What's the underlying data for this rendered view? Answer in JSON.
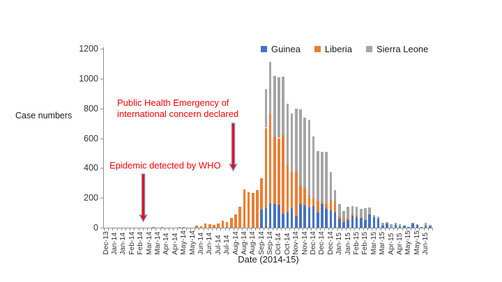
{
  "y_axis": {
    "label": "Case numbers",
    "ticks": [
      0,
      200,
      400,
      600,
      800,
      1000,
      1200
    ]
  },
  "x_axis": {
    "label": "Date (2014-15)"
  },
  "legend": [
    {
      "name": "Guinea",
      "color": "#4472C4"
    },
    {
      "name": "Liberia",
      "color": "#ED7D31"
    },
    {
      "name": "Sierra Leone",
      "color": "#A5A5A5"
    }
  ],
  "annotations": {
    "pheic_line1": "Public Health Emergency of",
    "pheic_line2": "international concern declared",
    "epidemic": "Epidemic detected by WHO",
    "text_color": "#FF0000",
    "arrow_fill": "#FF0000",
    "arrow_outline": "#7B8EC8"
  },
  "chart_data": {
    "type": "bar",
    "stacked": true,
    "title": "",
    "xlabel": "Date (2014-15)",
    "ylabel": "Case numbers",
    "ylim": [
      0,
      1200
    ],
    "y_tick_step": 200,
    "grid": false,
    "legend_position": "top",
    "bars_per_label": 2,
    "categories": [
      "Dec-13",
      "Jan-14",
      "Jan-14",
      "Feb-14",
      "Feb-14",
      "Mar-14",
      "Mar-14",
      "Apr-14",
      "Apr-14",
      "May-14",
      "May-14",
      "Jun-14",
      "Jun-14",
      "Jul-14",
      "Jul-14",
      "Aug-14",
      "Aug-14",
      "Aug-14",
      "Sep-14",
      "Sep-14",
      "Oct-14",
      "Oct-14",
      "Nov-14",
      "Nov-14",
      "Dec-14",
      "Dec-14",
      "Dec-14",
      "Jan-15",
      "Jan-15",
      "Feb-15",
      "Feb-15",
      "Mar-15",
      "Mar-15",
      "Apr-15",
      "Apr-15",
      "May-15",
      "May-15",
      "Jun-15"
    ],
    "series": [
      {
        "name": "Guinea",
        "color": "#4472C4",
        "values": [
          0,
          0,
          0,
          0,
          0,
          0,
          0,
          0,
          0,
          0,
          0,
          0,
          0,
          0,
          0,
          0,
          0,
          0,
          0,
          0,
          0,
          0,
          0,
          0,
          0,
          0,
          0,
          0,
          0,
          0,
          0,
          0,
          0,
          0,
          0,
          0,
          120,
          130,
          165,
          160,
          155,
          94,
          103,
          129,
          79,
          157,
          149,
          134,
          145,
          103,
          157,
          126,
          118,
          103,
          62,
          37,
          50,
          81,
          68,
          65,
          50,
          89,
          68,
          62,
          12,
          26,
          0,
          20,
          10,
          16,
          6,
          30,
          18,
          3,
          12,
          9
        ]
      },
      {
        "name": "Liberia",
        "color": "#ED7D31",
        "values": [
          0,
          0,
          0,
          0,
          0,
          0,
          0,
          0,
          0,
          0,
          0,
          6,
          0,
          6,
          0,
          0,
          0,
          7,
          5,
          0,
          0,
          12,
          8,
          30,
          22,
          19,
          28,
          45,
          38,
          65,
          87,
          140,
          258,
          239,
          234,
          250,
          210,
          540,
          595,
          450,
          445,
          528,
          316,
          243,
          299,
          128,
          117,
          86,
          56,
          73,
          13,
          34,
          70,
          73,
          11,
          16,
          15,
          12,
          12,
          0,
          0,
          0,
          0,
          0,
          0,
          0,
          0,
          0,
          0,
          0,
          0,
          0,
          0,
          0,
          0,
          0
        ]
      },
      {
        "name": "Sierra Leone",
        "color": "#A5A5A5",
        "values": [
          0,
          0,
          0,
          0,
          0,
          0,
          0,
          0,
          0,
          0,
          0,
          0,
          0,
          0,
          0,
          0,
          0,
          0,
          0,
          0,
          0,
          0,
          0,
          0,
          0,
          0,
          0,
          0,
          0,
          0,
          0,
          0,
          0,
          0,
          0,
          0,
          0,
          260,
          350,
          410,
          410,
          390,
          411,
          396,
          422,
          508,
          471,
          505,
          411,
          336,
          340,
          348,
          187,
          75,
          84,
          59,
          75,
          53,
          60,
          63,
          81,
          46,
          16,
          11,
          19,
          11,
          23,
          14,
          13,
          0,
          0,
          4,
          4,
          0,
          19,
          10
        ]
      }
    ]
  }
}
